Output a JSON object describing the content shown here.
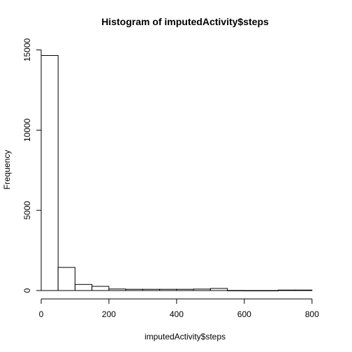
{
  "chart_data": {
    "type": "bar",
    "title": "Histogram of imputedActivity$steps",
    "xlabel": "imputedActivity$steps",
    "ylabel": "Frequency",
    "bin_width": 50,
    "bins": [
      {
        "start": 0,
        "end": 50,
        "count": 14650
      },
      {
        "start": 50,
        "end": 100,
        "count": 1440
      },
      {
        "start": 100,
        "end": 150,
        "count": 380
      },
      {
        "start": 150,
        "end": 200,
        "count": 260
      },
      {
        "start": 200,
        "end": 250,
        "count": 95
      },
      {
        "start": 250,
        "end": 300,
        "count": 80
      },
      {
        "start": 300,
        "end": 350,
        "count": 80
      },
      {
        "start": 350,
        "end": 400,
        "count": 80
      },
      {
        "start": 400,
        "end": 450,
        "count": 80
      },
      {
        "start": 450,
        "end": 500,
        "count": 90
      },
      {
        "start": 500,
        "end": 550,
        "count": 130
      },
      {
        "start": 550,
        "end": 600,
        "count": 5
      },
      {
        "start": 600,
        "end": 650,
        "count": 2
      },
      {
        "start": 650,
        "end": 700,
        "count": 2
      },
      {
        "start": 700,
        "end": 750,
        "count": 30
      },
      {
        "start": 750,
        "end": 800,
        "count": 30
      }
    ],
    "xlim": [
      0,
      850
    ],
    "ylim": [
      0,
      15500
    ],
    "xticks": [
      0,
      200,
      400,
      600,
      800
    ],
    "yticks": [
      0,
      5000,
      10000,
      15000
    ],
    "grid": false,
    "legend": "none"
  }
}
